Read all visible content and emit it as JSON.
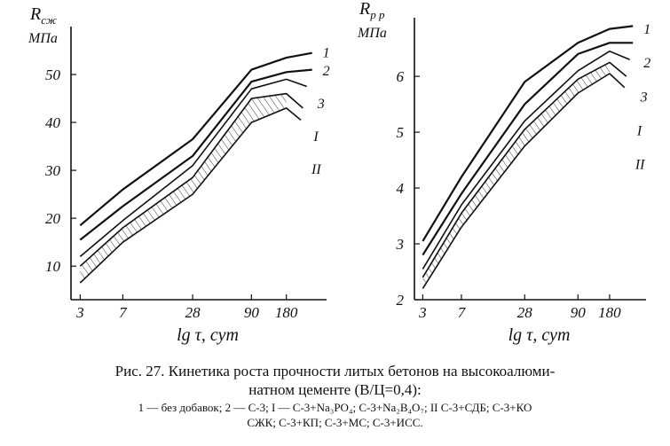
{
  "caption": {
    "title_line1": "Рис. 27. Кинетика роста прочности литых бетонов на высокоалюми-",
    "title_line2": "натном цементе (В/Ц=0,4):",
    "legend_line1": "1 — без добавок; 2 — С-3; I — С-3+Na₃PO₄; С-3+Na₂B₄O₇; II С-3+СДБ; С-3+КО",
    "legend_line2": "СЖК; С-3+КП; С-3+МС; С-3+ИСС."
  },
  "chart_data": [
    {
      "type": "line",
      "ylabel": "R сж, МПа",
      "ylabel_main": "R",
      "ylabel_sub": "сж",
      "ylabel_unit": "МПа",
      "xlabel": "lg τ, сут",
      "x_scale": "log",
      "categories": [
        "3",
        "7",
        "28",
        "90",
        "180"
      ],
      "x": [
        3,
        7,
        28,
        90,
        180
      ],
      "xlim": [
        2.5,
        400
      ],
      "ylim": [
        3,
        60
      ],
      "yticks": [
        10,
        20,
        30,
        40,
        50
      ],
      "grid": false,
      "hatched_band_between": [
        "I",
        "II"
      ],
      "series": [
        {
          "name": "1",
          "x": [
            3,
            7,
            28,
            90,
            180,
            300
          ],
          "values": [
            18.5,
            26,
            36.5,
            51,
            53.5,
            54.5
          ]
        },
        {
          "name": "2",
          "x": [
            3,
            7,
            28,
            90,
            180,
            300
          ],
          "values": [
            15.5,
            22.5,
            33,
            48.5,
            50.5,
            51
          ]
        },
        {
          "name": "3",
          "x": [
            3,
            7,
            28,
            90,
            180,
            270
          ],
          "values": [
            12,
            19.5,
            31,
            47,
            49,
            47.5
          ]
        },
        {
          "name": "I",
          "x": [
            3,
            7,
            28,
            90,
            180,
            250
          ],
          "values": [
            10,
            18,
            28.5,
            45,
            46,
            43
          ]
        },
        {
          "name": "II",
          "x": [
            3,
            7,
            28,
            90,
            180,
            240
          ],
          "values": [
            6.5,
            15,
            25,
            40,
            43,
            40.5
          ]
        }
      ]
    },
    {
      "type": "line",
      "ylabel": "R р р, МПа",
      "ylabel_main": "R",
      "ylabel_sub": "р р",
      "ylabel_unit": "МПа",
      "xlabel": "lg τ, сут",
      "x_scale": "log",
      "categories": [
        "3",
        "7",
        "28",
        "90",
        "180"
      ],
      "x": [
        3,
        7,
        28,
        90,
        180
      ],
      "xlim": [
        2.5,
        400
      ],
      "ylim": [
        2,
        7.05
      ],
      "yticks": [
        2,
        3,
        4,
        5,
        6
      ],
      "grid": false,
      "hatched_band_between": [
        "I",
        "II"
      ],
      "series": [
        {
          "name": "1",
          "x": [
            3,
            7,
            28,
            90,
            180,
            300
          ],
          "values": [
            3.05,
            4.2,
            5.9,
            6.6,
            6.85,
            6.9
          ]
        },
        {
          "name": "2",
          "x": [
            3,
            7,
            28,
            90,
            180,
            300
          ],
          "values": [
            2.8,
            3.9,
            5.5,
            6.4,
            6.6,
            6.6
          ]
        },
        {
          "name": "3",
          "x": [
            3,
            7,
            28,
            90,
            180,
            280
          ],
          "values": [
            2.55,
            3.7,
            5.2,
            6.1,
            6.45,
            6.3
          ]
        },
        {
          "name": "I",
          "x": [
            3,
            7,
            28,
            90,
            180,
            260
          ],
          "values": [
            2.4,
            3.55,
            5.05,
            5.95,
            6.25,
            6.0
          ]
        },
        {
          "name": "II",
          "x": [
            3,
            7,
            28,
            90,
            180,
            250
          ],
          "values": [
            2.2,
            3.3,
            4.75,
            5.7,
            6.05,
            5.8
          ]
        }
      ]
    }
  ]
}
